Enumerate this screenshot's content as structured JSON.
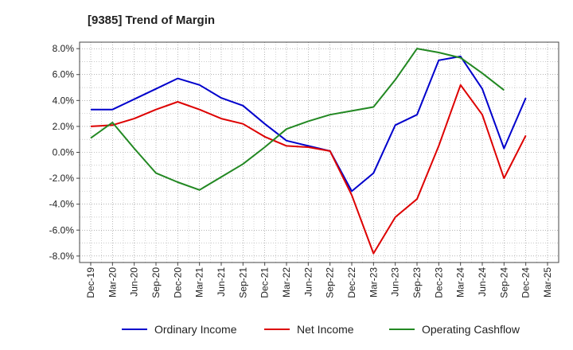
{
  "chart_data": {
    "type": "line",
    "title": "[9385]  Trend of Margin",
    "xlabel": "",
    "ylabel": "",
    "categories": [
      "Dec-19",
      "Mar-20",
      "Jun-20",
      "Sep-20",
      "Dec-20",
      "Mar-21",
      "Jun-21",
      "Sep-21",
      "Dec-21",
      "Mar-22",
      "Jun-22",
      "Sep-22",
      "Dec-22",
      "Mar-23",
      "Jun-23",
      "Sep-23",
      "Dec-23",
      "Mar-24",
      "Jun-24",
      "Sep-24",
      "Dec-24",
      "Mar-25"
    ],
    "ylim": [
      -8.5,
      8.5
    ],
    "yticks": [
      8,
      6,
      4,
      2,
      0,
      -2,
      -4,
      -6,
      -8
    ],
    "ytick_labels": [
      "8.0%",
      "6.0%",
      "4.0%",
      "2.0%",
      "0.0%",
      "-2.0%",
      "-4.0%",
      "-6.0%",
      "-8.0%"
    ],
    "grid": true,
    "legend_position": "bottom",
    "series": [
      {
        "name": "Ordinary Income",
        "color": "#0000cc",
        "values": [
          3.3,
          3.3,
          4.1,
          4.9,
          5.7,
          5.2,
          4.2,
          3.6,
          2.2,
          0.9,
          0.5,
          0.1,
          -3.0,
          -1.6,
          2.1,
          2.9,
          7.1,
          7.4,
          4.9,
          0.3,
          4.2,
          null
        ]
      },
      {
        "name": "Net Income",
        "color": "#dd0000",
        "values": [
          2.0,
          2.1,
          2.6,
          3.3,
          3.9,
          3.3,
          2.6,
          2.2,
          1.2,
          0.5,
          0.4,
          0.1,
          -3.3,
          -7.8,
          -5.0,
          -3.6,
          0.5,
          5.2,
          2.9,
          -2.0,
          1.3,
          null
        ]
      },
      {
        "name": "Operating Cashflow",
        "color": "#228822",
        "values": [
          1.1,
          2.3,
          0.3,
          -1.6,
          -2.3,
          -2.9,
          -1.9,
          -0.9,
          0.4,
          1.8,
          2.4,
          2.9,
          3.2,
          3.5,
          5.6,
          8.0,
          7.7,
          7.3,
          6.1,
          4.8,
          null,
          null
        ]
      }
    ]
  }
}
